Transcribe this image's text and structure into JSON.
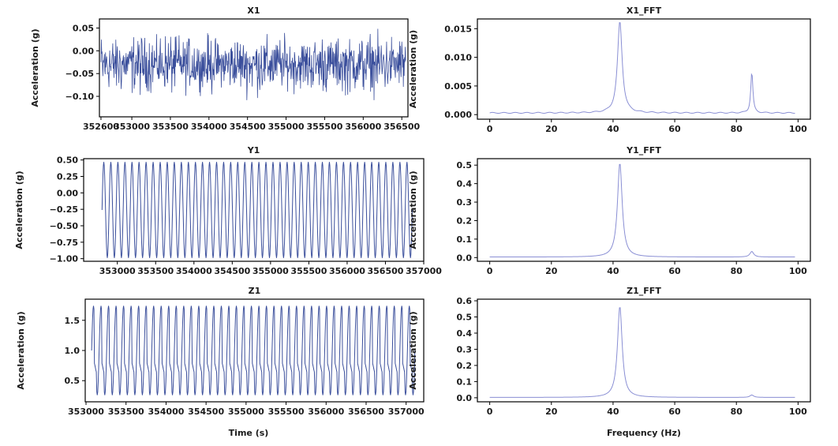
{
  "figure_labels": {
    "time_xlabel": "Time (s)",
    "freq_xlabel": "Frequency (Hz)"
  },
  "colors": {
    "time_line": "#3b4f9c",
    "fft_line": "#8a8fd4",
    "axes": "#000000"
  },
  "chart_data": [
    {
      "id": "x1",
      "type": "line",
      "title": "X1",
      "xlabel": "",
      "ylabel": "Acceleration (g)",
      "xlim": [
        352580,
        356580
      ],
      "ylim": [
        -0.145,
        0.07
      ],
      "xticks": [
        352600,
        353000,
        353500,
        354000,
        354500,
        355000,
        355500,
        356000,
        356500
      ],
      "yticks": [
        0.05,
        0.0,
        -0.05,
        -0.1
      ],
      "ytick_labels": [
        "0.05",
        "0.00",
        "−0.05",
        "−0.10"
      ],
      "signal": {
        "kind": "noise",
        "x_start": 352600,
        "x_end": 356550,
        "mean": -0.03,
        "amplitude": 0.045,
        "min": -0.135,
        "max": 0.065,
        "points": 800
      },
      "grid": false
    },
    {
      "id": "y1",
      "type": "line",
      "title": "Y1",
      "xlabel": "",
      "ylabel": "Acceleration (g)",
      "xlim": [
        352560,
        357000
      ],
      "ylim": [
        -1.04,
        0.52
      ],
      "xticks": [
        353000,
        353500,
        354000,
        354500,
        355000,
        355500,
        356000,
        356500,
        357000
      ],
      "yticks": [
        0.5,
        0.25,
        0.0,
        -0.25,
        -0.5,
        -0.75,
        -1.0
      ],
      "ytick_labels": [
        "0.50",
        "0.25",
        "0.00",
        "−0.25",
        "−0.50",
        "−0.75",
        "−1.00"
      ],
      "signal": {
        "kind": "sine",
        "x_start": 352800,
        "x_end": 356850,
        "center": -0.26,
        "amplitude": 0.73,
        "cycles": 44
      },
      "grid": false
    },
    {
      "id": "z1",
      "type": "line",
      "title": "Z1",
      "xlabel": "Time (s)",
      "ylabel": "Acceleration (g)",
      "xlim": [
        352990,
        357220
      ],
      "ylim": [
        0.15,
        1.85
      ],
      "xticks": [
        353000,
        353500,
        354000,
        354500,
        355000,
        355500,
        356000,
        356500,
        357000
      ],
      "yticks": [
        1.5,
        1.0,
        0.5
      ],
      "ytick_labels": [
        "1.5",
        "1.0",
        "0.5"
      ],
      "signal": {
        "kind": "sine",
        "x_start": 353070,
        "x_end": 357110,
        "center": 1.0,
        "amplitude": 0.74,
        "cycles": 43
      },
      "grid": false
    },
    {
      "id": "x1_fft",
      "type": "line",
      "title": "X1_FFT",
      "xlabel": "",
      "ylabel": "Acceleration (g)",
      "xlim": [
        -4,
        104
      ],
      "ylim": [
        -0.0008,
        0.0167
      ],
      "xticks": [
        0,
        20,
        40,
        60,
        80,
        100
      ],
      "yticks": [
        0.0,
        0.005,
        0.01,
        0.015
      ],
      "ytick_labels": [
        "0.000",
        "0.005",
        "0.010",
        "0.015"
      ],
      "spectrum": {
        "x_start": 0,
        "x_end": 99,
        "baseline": 0.0003,
        "peaks": [
          {
            "freq": 42.2,
            "height": 0.016,
            "width": 1.0
          },
          {
            "freq": 85.0,
            "height": 0.0072,
            "width": 0.45
          }
        ]
      },
      "grid": false
    },
    {
      "id": "y1_fft",
      "type": "line",
      "title": "Y1_FFT",
      "xlabel": "",
      "ylabel": "Acceleration (g)",
      "xlim": [
        -4,
        104
      ],
      "ylim": [
        -0.02,
        0.535
      ],
      "xticks": [
        0,
        20,
        40,
        60,
        80,
        100
      ],
      "yticks": [
        0.0,
        0.1,
        0.2,
        0.3,
        0.4,
        0.5
      ],
      "ytick_labels": [
        "0.0",
        "0.1",
        "0.2",
        "0.3",
        "0.4",
        "0.5"
      ],
      "spectrum": {
        "x_start": 0,
        "x_end": 99,
        "baseline": 0.003,
        "peaks": [
          {
            "freq": 42.2,
            "height": 0.51,
            "width": 1.0
          },
          {
            "freq": 85.0,
            "height": 0.03,
            "width": 0.8
          }
        ]
      },
      "grid": false
    },
    {
      "id": "z1_fft",
      "type": "line",
      "title": "Z1_FFT",
      "xlabel": "Frequency (Hz)",
      "ylabel": "Acceleration (g)",
      "xlim": [
        -4,
        104
      ],
      "ylim": [
        -0.025,
        0.61
      ],
      "xticks": [
        0,
        20,
        40,
        60,
        80,
        100
      ],
      "yticks": [
        0.0,
        0.1,
        0.2,
        0.3,
        0.4,
        0.5,
        0.6
      ],
      "ytick_labels": [
        "0.0",
        "0.1",
        "0.2",
        "0.3",
        "0.4",
        "0.5",
        "0.6"
      ],
      "spectrum": {
        "x_start": 0,
        "x_end": 99,
        "baseline": 0.002,
        "peaks": [
          {
            "freq": 42.2,
            "height": 0.565,
            "width": 1.0
          },
          {
            "freq": 85.0,
            "height": 0.015,
            "width": 0.8
          }
        ]
      },
      "grid": false
    }
  ]
}
